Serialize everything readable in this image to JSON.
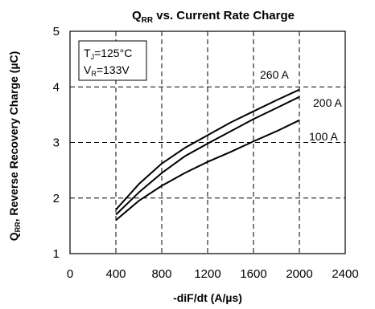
{
  "chart_data": {
    "type": "line",
    "title_main": "Q",
    "title_sub": "RR",
    "title_rest": " vs. Current Rate Charge",
    "xlabel": "-diF/dt (A/µs)",
    "ylabel_main": "Q",
    "ylabel_sub": "RR",
    "ylabel_rest": ", Reverse Recovery Charge (µC)",
    "xlim": [
      0,
      2400
    ],
    "ylim": [
      1,
      5
    ],
    "xticks": [
      0,
      400,
      800,
      1200,
      1600,
      2000,
      2400
    ],
    "yticks": [
      1,
      2,
      3,
      4,
      5
    ],
    "grid": true,
    "conditions": [
      {
        "main": "T",
        "sub": "J",
        "rest": "=125°C"
      },
      {
        "main": "V",
        "sub": "R",
        "rest": "=133V"
      }
    ],
    "series": [
      {
        "name": "260 A",
        "x": [
          400,
          600,
          800,
          1000,
          1200,
          1400,
          1600,
          1800,
          2000
        ],
        "y": [
          1.79,
          2.25,
          2.62,
          2.9,
          3.13,
          3.36,
          3.56,
          3.76,
          3.95
        ]
      },
      {
        "name": "200 A",
        "x": [
          400,
          600,
          800,
          1000,
          1200,
          1400,
          1600,
          1800,
          2000
        ],
        "y": [
          1.7,
          2.1,
          2.45,
          2.75,
          2.98,
          3.2,
          3.42,
          3.62,
          3.82
        ]
      },
      {
        "name": "100 A",
        "x": [
          400,
          600,
          800,
          1000,
          1200,
          1400,
          1600,
          1800,
          2000
        ],
        "y": [
          1.6,
          1.95,
          2.22,
          2.45,
          2.65,
          2.83,
          3.02,
          3.2,
          3.4
        ]
      }
    ]
  }
}
